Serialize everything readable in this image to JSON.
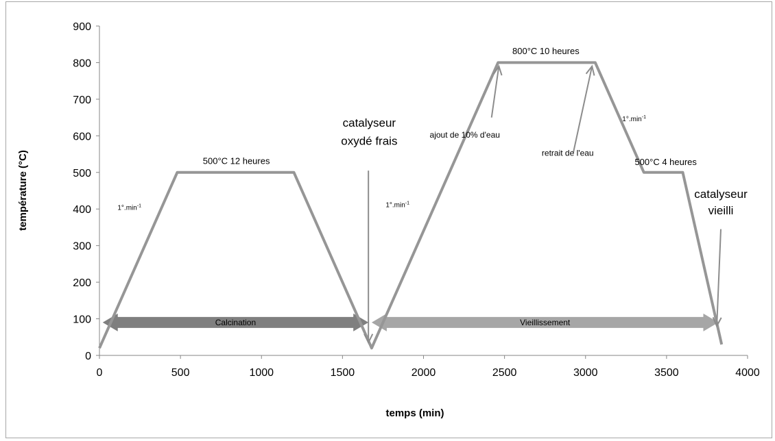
{
  "chart_data": {
    "type": "line",
    "title": "",
    "xlabel": "temps (min)",
    "ylabel": "température (°C)",
    "xlim": [
      0,
      4000
    ],
    "ylim": [
      0,
      900
    ],
    "x_ticks": [
      "0",
      "500",
      "1000",
      "1500",
      "2000",
      "2500",
      "3000",
      "3500",
      "4000"
    ],
    "y_ticks": [
      "0",
      "100",
      "200",
      "300",
      "400",
      "500",
      "600",
      "700",
      "800",
      "900"
    ],
    "grid": false,
    "legend": "none",
    "series": [
      {
        "color": "#969696",
        "x": [
          0,
          480,
          1200,
          1680,
          2460,
          3060,
          3360,
          3600,
          3840
        ],
        "y": [
          20,
          500,
          500,
          20,
          800,
          800,
          500,
          500,
          30
        ]
      }
    ],
    "phases": [
      {
        "label": "Calcination",
        "x_start": 20,
        "x_end": 1660,
        "y": 90,
        "color": "#7f7f7f"
      },
      {
        "label": "Vieillissement",
        "x_start": 1680,
        "x_end": 3820,
        "y": 90,
        "color": "#a6a6a6"
      }
    ],
    "annotations": [
      {
        "text": "500°C 12 heures",
        "x": 845,
        "y": 523,
        "size": 13
      },
      {
        "text": "800°C 10 heures",
        "x": 2755,
        "y": 823,
        "size": 13
      },
      {
        "text": "1°.min",
        "sup": "-1",
        "x": 185,
        "y": 398,
        "size": 10
      },
      {
        "text": "1°.min",
        "sup": "-1",
        "x": 1840,
        "y": 405,
        "size": 10
      },
      {
        "text": "1°.min",
        "sup": "-1",
        "x": 3300,
        "y": 640,
        "size": 10
      },
      {
        "text": "ajout de 10% d'eau",
        "x": 2255,
        "y": 595,
        "size": 12
      },
      {
        "text": "retrait de l'eau",
        "x": 2890,
        "y": 545,
        "size": 12
      },
      {
        "text": "500°C 4 heures",
        "x": 3495,
        "y": 520,
        "size": 13
      },
      {
        "text": "catalyseur",
        "x": 1665,
        "y": 625,
        "size": 17
      },
      {
        "text": "oxydé frais",
        "x": 1665,
        "y": 575,
        "size": 17
      },
      {
        "text": "catalyseur",
        "x": 3835,
        "y": 430,
        "size": 17
      },
      {
        "text": "vieilli",
        "x": 3835,
        "y": 385,
        "size": 17
      }
    ],
    "pointers": [
      {
        "from": [
          2420,
          650
        ],
        "to": [
          2465,
          790
        ],
        "head": "open"
      },
      {
        "from": [
          2925,
          555
        ],
        "to": [
          3040,
          790
        ],
        "head": "open"
      },
      {
        "from": [
          1660,
          505
        ],
        "to": [
          1660,
          35
        ],
        "head": "open"
      },
      {
        "from": [
          3835,
          345
        ],
        "to": [
          3810,
          80
        ],
        "head": "open"
      }
    ]
  }
}
